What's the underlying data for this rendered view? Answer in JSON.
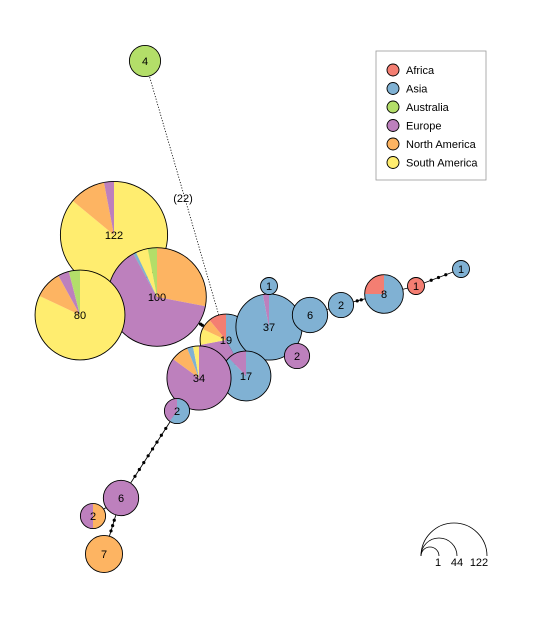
{
  "colors": {
    "Africa": "#f47e72",
    "Asia": "#80b1d3",
    "Australia": "#b3de69",
    "Europe": "#bd80bd",
    "North America": "#fdb462",
    "South America": "#ffed6f"
  },
  "legend": {
    "items": [
      "Africa",
      "Asia",
      "Australia",
      "Europe",
      "North America",
      "South America"
    ]
  },
  "edge_label": "(22)",
  "nodes": [
    {
      "id": "n122",
      "label": "122",
      "count": 122,
      "comp": {
        "South America": 0.86,
        "North America": 0.11,
        "Europe": 0.03
      }
    },
    {
      "id": "n100",
      "label": "100",
      "count": 100,
      "comp": {
        "North America": 0.28,
        "Europe": 0.64,
        "Asia": 0.01,
        "South America": 0.04,
        "Australia": 0.03
      }
    },
    {
      "id": "n80",
      "label": "80",
      "count": 80,
      "comp": {
        "South America": 0.82,
        "North America": 0.1,
        "Europe": 0.04,
        "Australia": 0.04
      }
    },
    {
      "id": "n4",
      "label": "4",
      "count": 4,
      "comp": {
        "Australia": 1.0
      }
    },
    {
      "id": "n19",
      "label": "19",
      "count": 19,
      "comp": {
        "Asia": 0.42,
        "Europe": 0.3,
        "South America": 0.1,
        "North America": 0.07,
        "Africa": 0.11
      }
    },
    {
      "id": "n37",
      "label": "37",
      "count": 37,
      "comp": {
        "Asia": 0.97,
        "Europe": 0.03
      }
    },
    {
      "id": "n1a",
      "label": "1",
      "count": 1,
      "comp": {
        "Asia": 1.0
      }
    },
    {
      "id": "n2a",
      "label": "2",
      "count": 2,
      "comp": {
        "Europe": 1.0
      }
    },
    {
      "id": "n6a",
      "label": "6",
      "count": 6,
      "comp": {
        "Asia": 1.0
      }
    },
    {
      "id": "n2b",
      "label": "2",
      "count": 2,
      "comp": {
        "Asia": 1.0
      }
    },
    {
      "id": "n8",
      "label": "8",
      "count": 8,
      "comp": {
        "Asia": 0.75,
        "Africa": 0.25
      }
    },
    {
      "id": "n1b",
      "label": "1",
      "count": 1,
      "comp": {
        "Africa": 1.0
      }
    },
    {
      "id": "n1c",
      "label": "1",
      "count": 1,
      "comp": {
        "Asia": 1.0
      }
    },
    {
      "id": "n17",
      "label": "17",
      "count": 17,
      "comp": {
        "Asia": 0.88,
        "Europe": 0.12
      }
    },
    {
      "id": "n34",
      "label": "34",
      "count": 34,
      "comp": {
        "Europe": 0.85,
        "North America": 0.09,
        "Asia": 0.03,
        "South America": 0.03
      }
    },
    {
      "id": "n2c",
      "label": "2",
      "count": 2,
      "comp": {
        "Asia": 0.6,
        "Europe": 0.4
      }
    },
    {
      "id": "n6b",
      "label": "6",
      "count": 6,
      "comp": {
        "Europe": 1.0
      }
    },
    {
      "id": "n2d",
      "label": "2",
      "count": 2,
      "comp": {
        "North America": 0.5,
        "Europe": 0.5
      }
    },
    {
      "id": "n7",
      "label": "7",
      "count": 7,
      "comp": {
        "North America": 1.0
      }
    }
  ],
  "edges": [
    {
      "from": "n122",
      "to": "n100",
      "steps": 1,
      "dotted": false
    },
    {
      "from": "n80",
      "to": "n100",
      "steps": 2,
      "dotted": false
    },
    {
      "from": "n100",
      "to": "n19",
      "steps": 3,
      "dotted": false
    },
    {
      "from": "n4",
      "to": "n19",
      "steps": 22,
      "dotted": true
    },
    {
      "from": "n19",
      "to": "n37",
      "steps": 1,
      "dotted": false
    },
    {
      "from": "n19",
      "to": "n34",
      "steps": 1,
      "dotted": false
    },
    {
      "from": "n19",
      "to": "n17",
      "steps": 1,
      "dotted": false
    },
    {
      "from": "n37",
      "to": "n1a",
      "steps": 1,
      "dotted": false
    },
    {
      "from": "n37",
      "to": "n2a",
      "steps": 1,
      "dotted": false
    },
    {
      "from": "n37",
      "to": "n6a",
      "steps": 1,
      "dotted": false
    },
    {
      "from": "n6a",
      "to": "n2b",
      "steps": 1,
      "dotted": false
    },
    {
      "from": "n2b",
      "to": "n8",
      "steps": 3,
      "dotted": false
    },
    {
      "from": "n8",
      "to": "n1b",
      "steps": 1,
      "dotted": false
    },
    {
      "from": "n1b",
      "to": "n1c",
      "steps": 4,
      "dotted": false
    },
    {
      "from": "n34",
      "to": "n2c",
      "steps": 1,
      "dotted": false
    },
    {
      "from": "n2c",
      "to": "n6b",
      "steps": 9,
      "dotted": false
    },
    {
      "from": "n6b",
      "to": "n2d",
      "steps": 1,
      "dotted": false
    },
    {
      "from": "n6b",
      "to": "n7",
      "steps": 4,
      "dotted": false
    }
  ],
  "size_scale": {
    "values": [
      "1",
      "44",
      "122"
    ]
  }
}
